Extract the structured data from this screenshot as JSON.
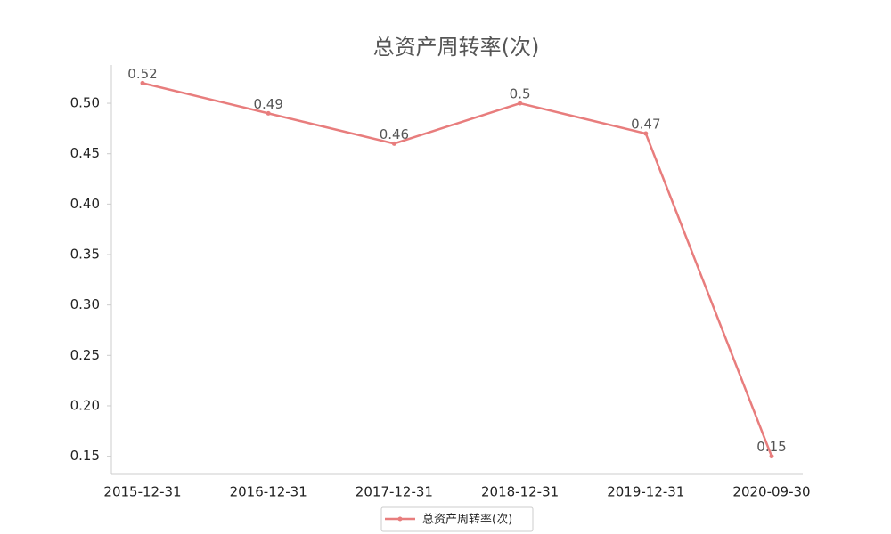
{
  "chart_data": {
    "type": "line",
    "title": "总资产周转率(次)",
    "categories": [
      "2015-12-31",
      "2016-12-31",
      "2017-12-31",
      "2018-12-31",
      "2019-12-31",
      "2020-09-30"
    ],
    "series": [
      {
        "name": "总资产周转率(次)",
        "color": "#e87d7d",
        "values": [
          0.52,
          0.49,
          0.46,
          0.5,
          0.47,
          0.15
        ]
      }
    ],
    "ylim": [
      0.132,
      0.538
    ],
    "yticks": [
      0.15,
      {
        "value": 0.2,
        "label": "0.20"
      },
      0.25,
      {
        "value": 0.3,
        "label": "0.30"
      },
      0.35,
      {
        "value": 0.4,
        "label": "0.40"
      },
      0.45,
      {
        "value": 0.5,
        "label": "0.50"
      }
    ],
    "legend": "bottom"
  }
}
